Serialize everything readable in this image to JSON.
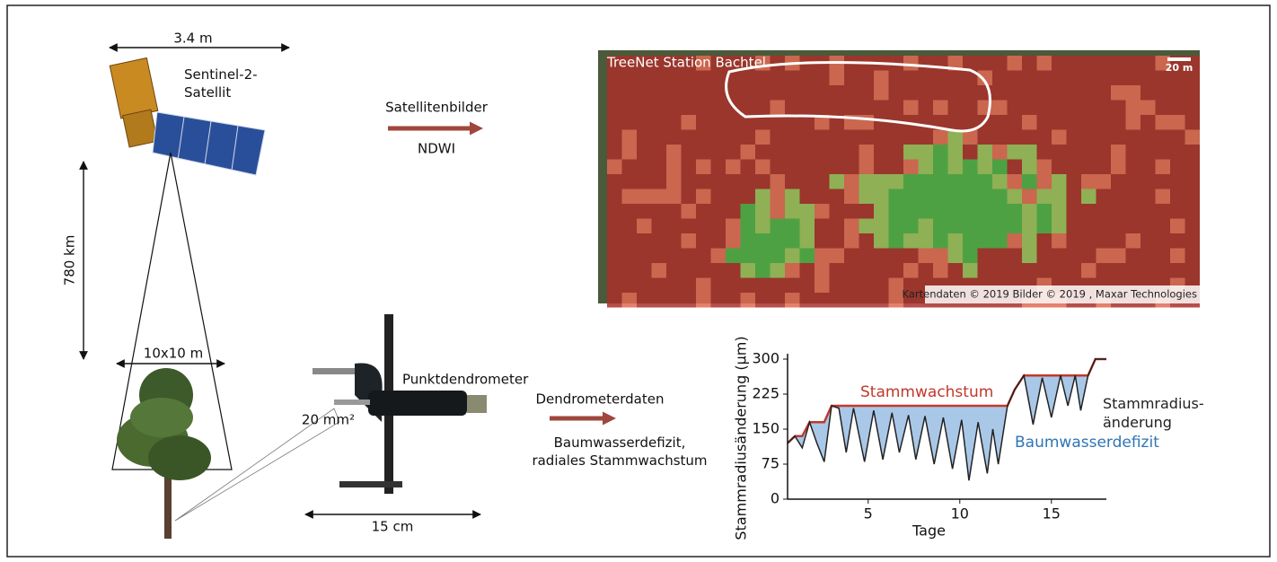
{
  "satellite": {
    "width_label": "3.4 m",
    "name": "Sentinel-2-\nSatellit",
    "distance_label": "780 km",
    "pixel_label": "10x10 m"
  },
  "dendrometer": {
    "area_label": "20 mm²",
    "name": "Punktdendrometer",
    "width_label": "15 cm"
  },
  "arrows": [
    {
      "above": "Satellitenbilder",
      "below": "NDWI"
    },
    {
      "above": "Dendrometerdaten",
      "below": "Baumwasserdefizit,\nradiales Stammwachstum"
    }
  ],
  "map": {
    "title": "TreeNet Station Bachtel",
    "scale_label": "20 m",
    "credit": "Kartendaten © 2019 Bilder © 2019 , Maxar Technologies"
  },
  "chart_data": {
    "type": "line",
    "ylabel": "Stammradiusänderung (µm)",
    "xlabel": "Tage",
    "xlim": [
      0.6,
      18
    ],
    "xticks": [
      5,
      10,
      15
    ],
    "ylim": [
      0,
      300
    ],
    "yticks": [
      0,
      75,
      150,
      225,
      300
    ],
    "fill_color": "#a9c8e8",
    "fill_label": "Baumwasserdefizit",
    "x": [
      0.6,
      1.0,
      1.4,
      1.8,
      2.2,
      2.6,
      3.0,
      3.4,
      3.8,
      4.2,
      4.8,
      5.3,
      5.8,
      6.3,
      6.7,
      7.2,
      7.6,
      8.1,
      8.6,
      9.1,
      9.6,
      10.1,
      10.5,
      11.0,
      11.5,
      11.8,
      12.1,
      12.6,
      13.0,
      13.5,
      14.0,
      14.5,
      15.0,
      15.5,
      15.9,
      16.3,
      16.6,
      17.0,
      17.4,
      18.0
    ],
    "series": [
      {
        "name": "Stammwachstum",
        "color": "#c0392b",
        "values": [
          120,
          135,
          135,
          165,
          165,
          165,
          200,
          200,
          200,
          200,
          200,
          200,
          200,
          200,
          200,
          200,
          200,
          200,
          200,
          200,
          200,
          200,
          200,
          200,
          200,
          200,
          200,
          200,
          235,
          265,
          265,
          265,
          265,
          265,
          265,
          265,
          265,
          265,
          300,
          300
        ]
      },
      {
        "name": "Stammradius-\nänderung",
        "color": "#222222",
        "values": [
          120,
          135,
          110,
          165,
          120,
          80,
          200,
          195,
          100,
          195,
          80,
          190,
          85,
          185,
          100,
          180,
          85,
          178,
          75,
          175,
          65,
          170,
          40,
          165,
          55,
          150,
          75,
          200,
          235,
          265,
          160,
          260,
          175,
          265,
          200,
          265,
          190,
          265,
          300,
          300
        ]
      }
    ]
  }
}
